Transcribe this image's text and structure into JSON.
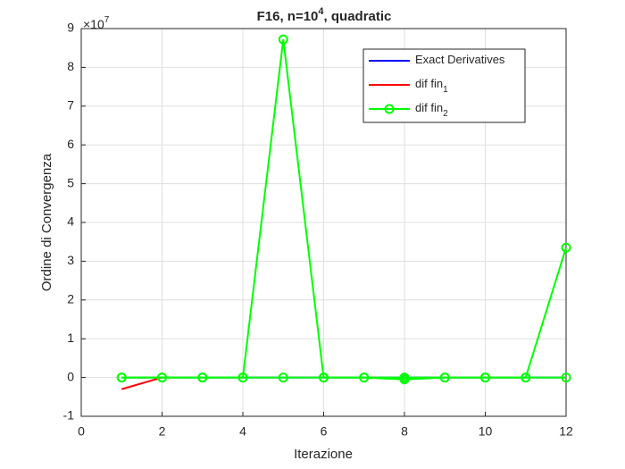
{
  "chart_data": {
    "type": "line",
    "title": "F16, n=10",
    "title_superscript": "4",
    "title_suffix": ", quadratic",
    "xlabel": "Iterazione",
    "ylabel": "Ordine di Convergenza",
    "y_scale_label": "×10",
    "y_scale_exponent": "7",
    "x": [
      1,
      2,
      3,
      4,
      5,
      6,
      7,
      8,
      9,
      10,
      11,
      12
    ],
    "xlim": [
      0,
      12
    ],
    "xticks": [
      0,
      2,
      4,
      6,
      8,
      10,
      12
    ],
    "ylim": [
      -1,
      9
    ],
    "yticks": [
      -1,
      0,
      1,
      2,
      3,
      4,
      5,
      6,
      7,
      8,
      9
    ],
    "grid": true,
    "legend": "upper right",
    "series": [
      {
        "name": "Exact Derivatives",
        "color": "#0000ff",
        "marker": false,
        "values": [
          0,
          0,
          0,
          0,
          0,
          0,
          0,
          0,
          0,
          0,
          0,
          0
        ]
      },
      {
        "name": "dif fin",
        "subscript": "1",
        "color": "#ff0000",
        "marker": false,
        "values": [
          -0.3,
          0,
          null,
          null,
          null,
          null,
          null,
          null,
          null,
          null,
          null,
          null
        ]
      },
      {
        "name": "dif fin",
        "subscript": "2",
        "color": "#00ff00",
        "marker": true,
        "values": [
          0,
          0,
          0,
          0,
          8.72,
          0,
          0,
          -0.05,
          0,
          0,
          0,
          3.35
        ]
      },
      {
        "color": "#00ff00",
        "marker": true,
        "values": [
          0,
          0,
          0,
          0,
          0,
          0,
          0,
          0,
          0,
          0,
          0,
          0
        ]
      }
    ]
  }
}
